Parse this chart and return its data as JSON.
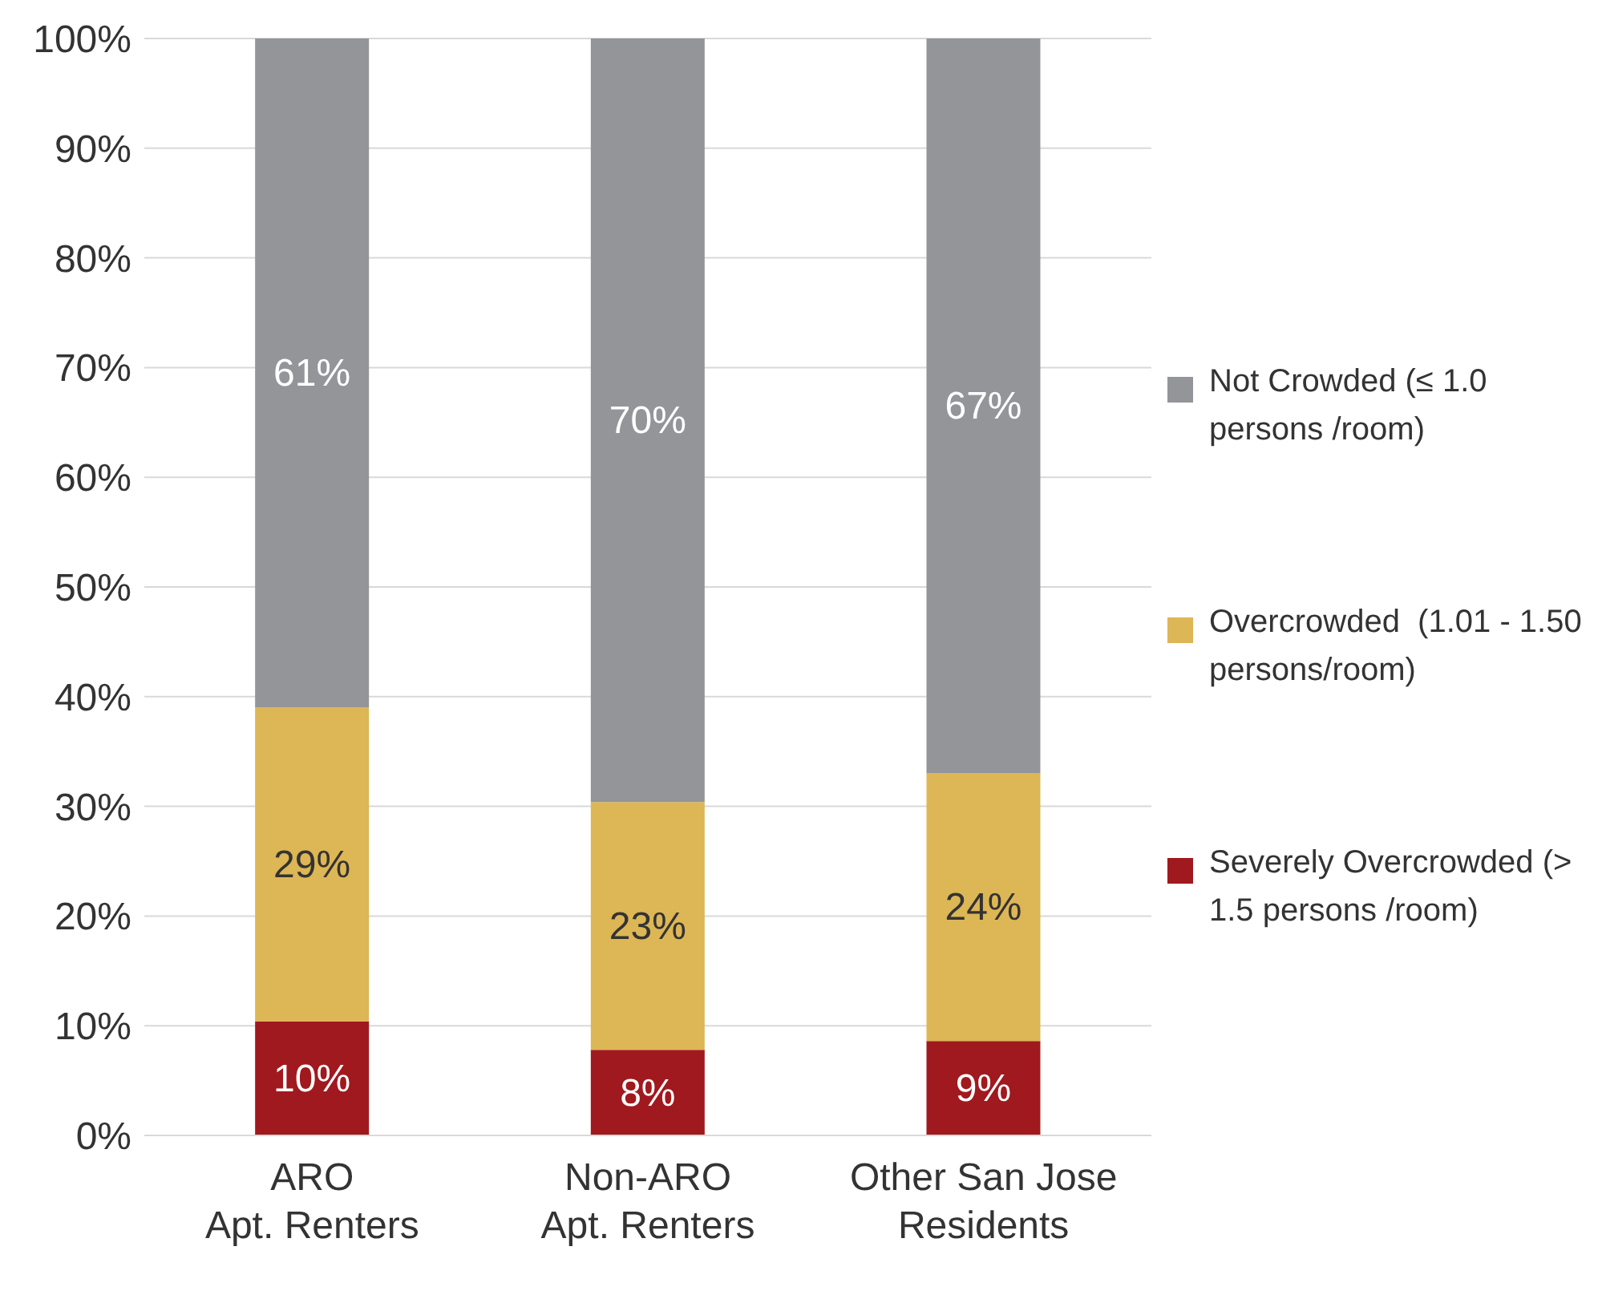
{
  "chart_data": {
    "type": "bar",
    "stacked": true,
    "categories": [
      "ARO\nApt. Renters",
      "Non-ARO\nApt. Renters",
      "Other San Jose\nResidents"
    ],
    "series": [
      {
        "name": "Severely Overcrowded (> 1.5 persons /room)",
        "color": "#a0191e",
        "values": [
          10.4,
          7.8,
          8.6
        ],
        "value_labels": [
          "10%",
          "8%",
          "9%"
        ]
      },
      {
        "name": "Overcrowded  (1.01 - 1.50  persons/room)",
        "color": "#ddb655",
        "values": [
          28.6,
          22.6,
          24.4
        ],
        "value_labels": [
          "29%",
          "23%",
          "24%"
        ]
      },
      {
        "name": "Not Crowded (≤ 1.0 persons /room)",
        "color": "#939598",
        "values": [
          61,
          69.6,
          67
        ],
        "value_labels": [
          "61%",
          "70%",
          "67%"
        ]
      }
    ],
    "ylim": [
      0,
      100
    ],
    "yticks": [
      {
        "value": 0,
        "label": "0%"
      },
      {
        "value": 10,
        "label": "10%"
      },
      {
        "value": 20,
        "label": "20%"
      },
      {
        "value": 30,
        "label": "30%"
      },
      {
        "value": 40,
        "label": "40%"
      },
      {
        "value": 50,
        "label": "50%"
      },
      {
        "value": 60,
        "label": "60%"
      },
      {
        "value": 70,
        "label": "70%"
      },
      {
        "value": 80,
        "label": "80%"
      },
      {
        "value": 90,
        "label": "90%"
      },
      {
        "value": 100,
        "label": "100%"
      }
    ],
    "grid": "y",
    "legend": "right"
  }
}
